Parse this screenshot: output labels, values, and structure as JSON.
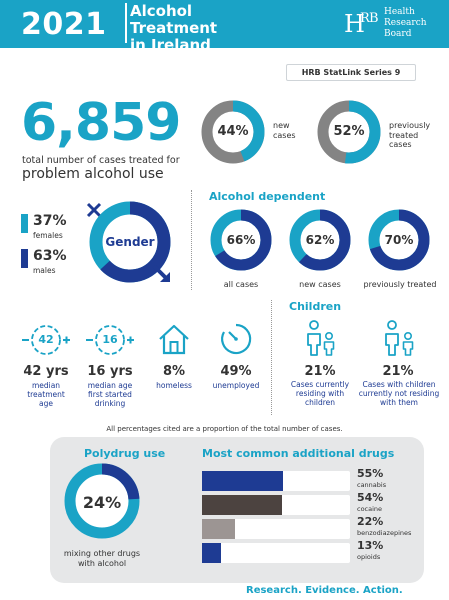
{
  "header": {
    "year": "2021",
    "title_line1": "Alcohol Treatment",
    "title_line2": "in Ireland",
    "logo": "HRB",
    "org_line1": "Health",
    "org_line2": "Research",
    "org_line3": "Board"
  },
  "series_label": "HRB StatLink Series 9",
  "total": {
    "value": "6,859",
    "line1": "total number of cases treated for",
    "line2": "problem alcohol use"
  },
  "case_type": {
    "new": {
      "value": 44,
      "pct": "44%",
      "label_line1": "new",
      "label_line2": "cases"
    },
    "previous": {
      "value": 52,
      "pct": "52%",
      "label_line1": "previously",
      "label_line2": "treated",
      "label_line3": "cases"
    }
  },
  "gender": {
    "title": "Gender",
    "female": {
      "value": 37,
      "pct": "37%",
      "label": "females"
    },
    "male": {
      "value": 63,
      "pct": "63%",
      "label": "males"
    }
  },
  "alcohol_dependent": {
    "title": "Alcohol dependent",
    "items": [
      {
        "value": 66,
        "pct": "66%",
        "label": "all cases"
      },
      {
        "value": 62,
        "pct": "62%",
        "label": "new cases"
      },
      {
        "value": 70,
        "pct": "70%",
        "label": "previously treated"
      }
    ]
  },
  "stats": {
    "median_age": {
      "icon_text": "42",
      "value": "42 yrs",
      "label_line1": "median",
      "label_line2": "treatment",
      "label_line3": "age"
    },
    "first_drink": {
      "icon_text": "16",
      "value": "16 yrs",
      "label_line1": "median age",
      "label_line2": "first started",
      "label_line3": "drinking"
    },
    "homeless": {
      "value": "8%",
      "label": "homeless"
    },
    "unemployed": {
      "value": "49%",
      "label": "unemployed"
    }
  },
  "children": {
    "title": "Children",
    "residing": {
      "value": "21%",
      "label_line1": "Cases currently",
      "label_line2": "residing with",
      "label_line3": "children"
    },
    "not_residing": {
      "value": "21%",
      "label_line1": "Cases with children",
      "label_line2": "currently not residing",
      "label_line3": "with them"
    }
  },
  "footnote": "All percentages cited are a proportion of the total number of cases.",
  "polydrug": {
    "title": "Polydrug use",
    "value": 24,
    "pct": "24%",
    "label_line1": "mixing other drugs",
    "label_line2": "with alcohol"
  },
  "additional_drugs": {
    "title": "Most common additional drugs",
    "items": [
      {
        "value": 55,
        "pct": "55%",
        "label": "cannabis",
        "color": "#1e3b93"
      },
      {
        "value": 54,
        "pct": "54%",
        "label": "cocaine",
        "color": "#4c4340"
      },
      {
        "value": 22,
        "pct": "22%",
        "label": "benzodiazepines",
        "color": "#9c9593"
      },
      {
        "value": 13,
        "pct": "13%",
        "label": "opioids",
        "color": "#1e3b93"
      }
    ]
  },
  "tagline": "Research. Evidence. Action.",
  "colors": {
    "teal": "#1aa3c6",
    "navy": "#1e3b93",
    "grey": "#848484",
    "light_track": "#d0d0d0"
  }
}
